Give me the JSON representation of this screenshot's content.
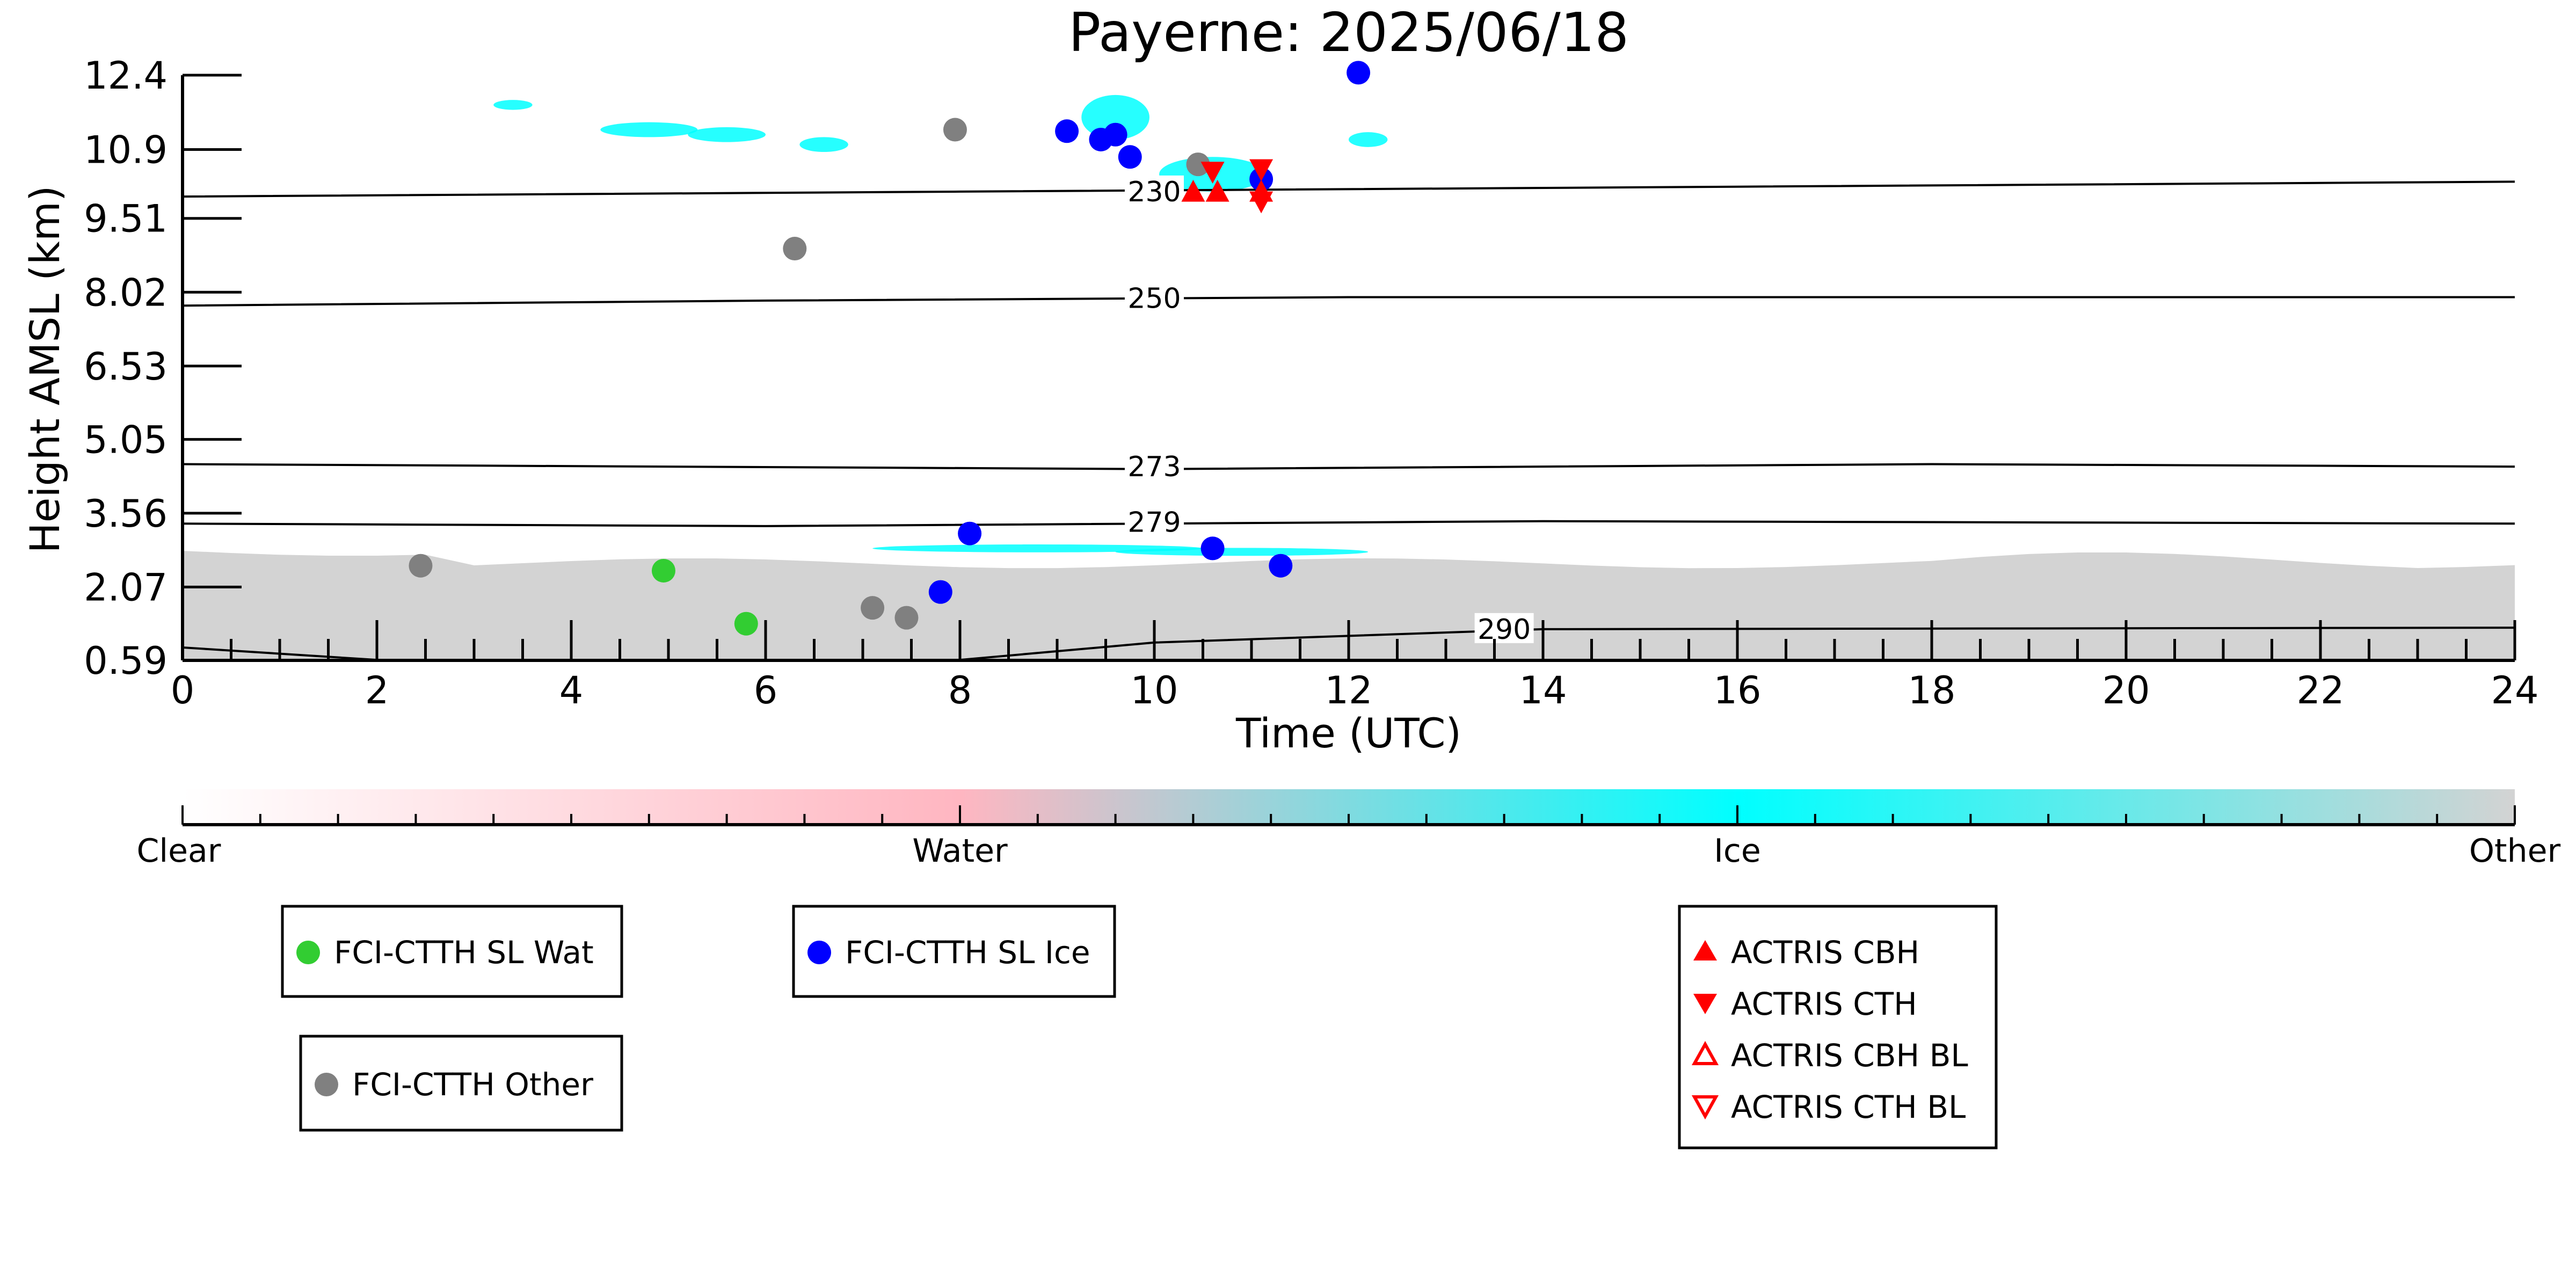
{
  "chart_data": {
    "type": "scatter",
    "title": "Payerne: 2025/06/18",
    "xlabel": "Time (UTC)",
    "ylabel": "Height AMSL (km)",
    "xlim": [
      0,
      24
    ],
    "ylim": [
      0.59,
      12.4
    ],
    "x_ticks": [
      "0",
      "2",
      "4",
      "6",
      "8",
      "10",
      "12",
      "14",
      "16",
      "18",
      "20",
      "22",
      "24"
    ],
    "y_ticks": [
      "0.59",
      "2.07",
      "3.56",
      "5.05",
      "6.53",
      "8.02",
      "9.51",
      "10.9",
      "12.4"
    ],
    "grid": false,
    "colorbar": {
      "labels": [
        "Clear",
        "Water",
        "Ice",
        "Other"
      ],
      "colors": [
        "#ffffff",
        "#ffb6c1",
        "#00ffff",
        "#d3d3d3"
      ]
    },
    "isotherms": [
      {
        "label": "230",
        "points": [
          [
            0,
            9.95
          ],
          [
            8,
            10.05
          ],
          [
            16,
            10.15
          ],
          [
            24,
            10.25
          ]
        ]
      },
      {
        "label": "250",
        "points": [
          [
            0,
            7.75
          ],
          [
            6,
            7.85
          ],
          [
            12,
            7.92
          ],
          [
            24,
            7.92
          ]
        ]
      },
      {
        "label": "273",
        "points": [
          [
            0,
            4.55
          ],
          [
            10,
            4.45
          ],
          [
            18,
            4.55
          ],
          [
            24,
            4.5
          ]
        ]
      },
      {
        "label": "279",
        "points": [
          [
            0,
            3.35
          ],
          [
            6,
            3.3
          ],
          [
            14,
            3.4
          ],
          [
            24,
            3.35
          ]
        ]
      },
      {
        "label": "290",
        "points": [
          [
            0,
            0.85
          ],
          [
            2,
            0.6
          ],
          [
            8,
            0.6
          ],
          [
            10,
            0.95
          ],
          [
            14,
            1.22
          ],
          [
            24,
            1.25
          ]
        ]
      }
    ],
    "series": [
      {
        "name": "FCI-CTTH SL Wat",
        "color": "#32cd32",
        "marker": "circle",
        "points": [
          [
            4.95,
            2.4
          ],
          [
            5.8,
            1.33
          ]
        ]
      },
      {
        "name": "FCI-CTTH SL Ice",
        "color": "#0000ff",
        "marker": "circle",
        "points": [
          [
            8.1,
            3.15
          ],
          [
            7.8,
            1.97
          ],
          [
            9.1,
            11.27
          ],
          [
            9.45,
            11.1
          ],
          [
            9.6,
            11.2
          ],
          [
            9.75,
            10.75
          ],
          [
            10.6,
            2.85
          ],
          [
            11.1,
            10.3
          ],
          [
            11.3,
            2.5
          ],
          [
            12.1,
            12.45
          ]
        ]
      },
      {
        "name": "FCI-CTTH Other",
        "color": "#808080",
        "marker": "circle",
        "points": [
          [
            2.45,
            2.5
          ],
          [
            6.3,
            8.9
          ],
          [
            7.1,
            1.65
          ],
          [
            7.45,
            1.45
          ],
          [
            7.95,
            11.3
          ],
          [
            10.45,
            10.6
          ]
        ]
      },
      {
        "name": "ACTRIS CBH",
        "color": "#ff0000",
        "marker": "triangle-up",
        "points": [
          [
            10.4,
            10.05
          ],
          [
            10.65,
            10.05
          ],
          [
            11.1,
            10.05
          ]
        ]
      },
      {
        "name": "ACTRIS CTH",
        "color": "#ff0000",
        "marker": "triangle-down",
        "points": [
          [
            10.6,
            10.45
          ],
          [
            11.1,
            10.5
          ],
          [
            11.1,
            9.85
          ]
        ]
      },
      {
        "name": "ACTRIS CBH BL",
        "color": "#ff0000",
        "marker": "triangle-up-open",
        "points": []
      },
      {
        "name": "ACTRIS CTH BL",
        "color": "#ff0000",
        "marker": "triangle-down-open",
        "points": []
      }
    ],
    "legends": [
      {
        "items": [
          "FCI-CTTH SL Wat"
        ]
      },
      {
        "items": [
          "FCI-CTTH SL Ice"
        ]
      },
      {
        "items": [
          "FCI-CTTH Other"
        ]
      },
      {
        "items": [
          "ACTRIS CBH",
          "ACTRIS CTH",
          "ACTRIS CBH BL",
          "ACTRIS CTH BL"
        ]
      }
    ]
  }
}
